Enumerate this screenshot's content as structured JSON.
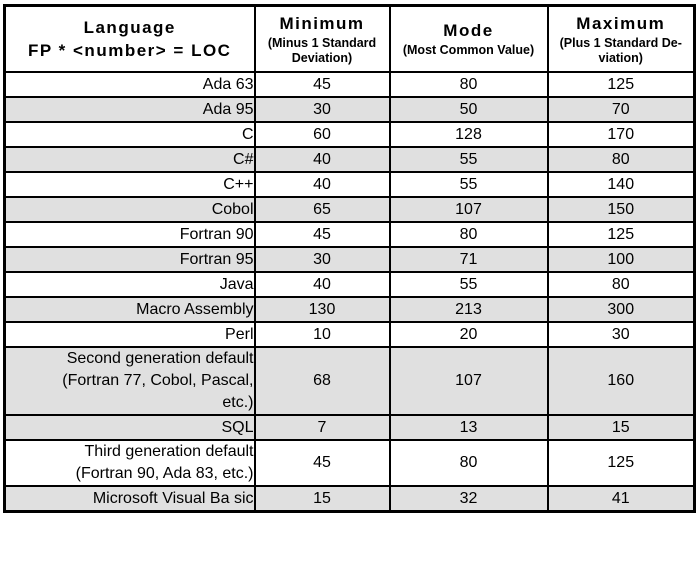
{
  "colors": {
    "background": "#ffffff",
    "border": "#000000",
    "row_shade": "#e0e0e0"
  },
  "table": {
    "header": {
      "language": {
        "title": "Language",
        "formula": "FP * <number> = LOC"
      },
      "columns": [
        {
          "title": "Minimum",
          "subtitle": "(Minus 1 Standard\nDeviation)"
        },
        {
          "title": "Mode",
          "subtitle": "(Most Common Value)"
        },
        {
          "title": "Maximum",
          "subtitle": "(Plus 1 Standard De-\nviation)"
        }
      ]
    },
    "rows": [
      {
        "language": "Ada 63",
        "minimum": "45",
        "mode": "80",
        "maximum": "125"
      },
      {
        "language": "Ada 95",
        "minimum": "30",
        "mode": "50",
        "maximum": "70"
      },
      {
        "language": "C",
        "minimum": "60",
        "mode": "128",
        "maximum": "170"
      },
      {
        "language": "C#",
        "minimum": "40",
        "mode": "55",
        "maximum": "80"
      },
      {
        "language": "C++",
        "minimum": "40",
        "mode": "55",
        "maximum": "140"
      },
      {
        "language": "Cobol",
        "minimum": "65",
        "mode": "107",
        "maximum": "150"
      },
      {
        "language": "Fortran 90",
        "minimum": "45",
        "mode": "80",
        "maximum": "125"
      },
      {
        "language": "Fortran 95",
        "minimum": "30",
        "mode": "71",
        "maximum": "100"
      },
      {
        "language": "Java",
        "minimum": "40",
        "mode": "55",
        "maximum": "80"
      },
      {
        "language": "Macro Assembly",
        "minimum": "130",
        "mode": "213",
        "maximum": "300"
      },
      {
        "language": "Perl",
        "minimum": "10",
        "mode": "20",
        "maximum": "30"
      },
      {
        "language": "Second generation default\n(Fortran 77, Cobol, Pascal,\netc.)",
        "minimum": "68",
        "mode": "107",
        "maximum": "160"
      },
      {
        "language": "SQL",
        "minimum": "7",
        "mode": "13",
        "maximum": "15"
      },
      {
        "language": "Third generation default\n(Fortran 90, Ada 83, etc.)",
        "minimum": "45",
        "mode": "80",
        "maximum": "125"
      },
      {
        "language": "Microsoft Visual Ba sic",
        "minimum": "15",
        "mode": "32",
        "maximum": "41"
      }
    ]
  }
}
